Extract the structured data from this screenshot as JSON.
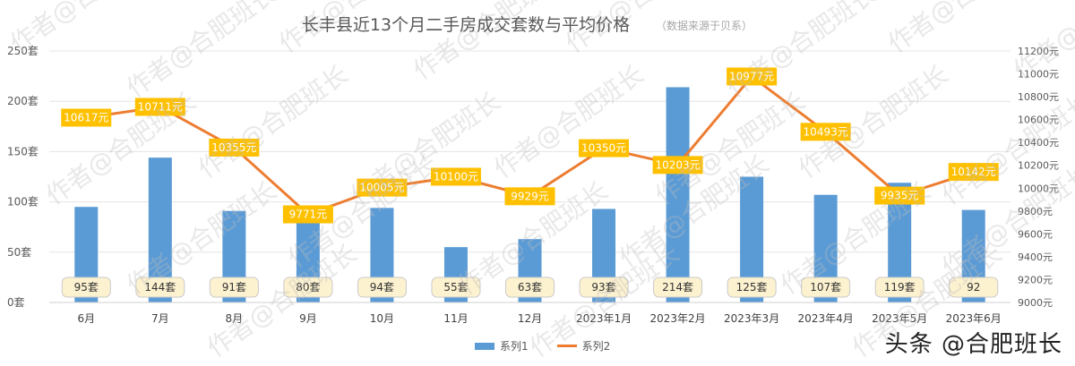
{
  "chart_data": {
    "type": "bar+line",
    "title": "长丰县近13个月二手房成交套数与平均价格",
    "subtitle": "（数据来源于贝系）",
    "categories": [
      "6月",
      "7月",
      "8月",
      "9月",
      "10月",
      "11月",
      "12月",
      "2023年1月",
      "2023年2月",
      "2023年3月",
      "2023年4月",
      "2023年5月",
      "2023年6月"
    ],
    "series": [
      {
        "name": "系列1",
        "type": "bar",
        "axis": "left",
        "color": "#5B9BD5",
        "values": [
          95,
          144,
          91,
          80,
          94,
          55,
          63,
          93,
          214,
          125,
          107,
          119,
          92
        ],
        "labels": [
          "95套",
          "144套",
          "91套",
          "80套",
          "94套",
          "55套",
          "63套",
          "93套",
          "214套",
          "125套",
          "107套",
          "119套",
          "92"
        ]
      },
      {
        "name": "系列2",
        "type": "line",
        "axis": "right",
        "color": "#ED7D31",
        "values": [
          10617,
          10711,
          10355,
          9771,
          10005,
          10100,
          9929,
          10350,
          10203,
          10977,
          10493,
          9935,
          10142
        ],
        "labels": [
          "10617元",
          "10711元",
          "10355元",
          "9771元",
          "10005元",
          "10100元",
          "9929元",
          "10350元",
          "10203元",
          "10977元",
          "10493元",
          "9935元",
          "10142元"
        ]
      }
    ],
    "y_left": {
      "ylim": [
        0,
        250
      ],
      "ticks": [
        "0套",
        "50套",
        "100套",
        "150套",
        "200套",
        "250套"
      ]
    },
    "y_right": {
      "ylim": [
        9000,
        11200
      ],
      "ticks": [
        "9000元",
        "9200元",
        "9400元",
        "9600元",
        "9800元",
        "10000元",
        "10200元",
        "10400元",
        "10600元",
        "10800元",
        "11000元",
        "11200元"
      ]
    },
    "legend": "bottom",
    "grid": true
  },
  "watermark_text": "作者@合肥班长",
  "footer_brand": "头条 @合肥班长"
}
